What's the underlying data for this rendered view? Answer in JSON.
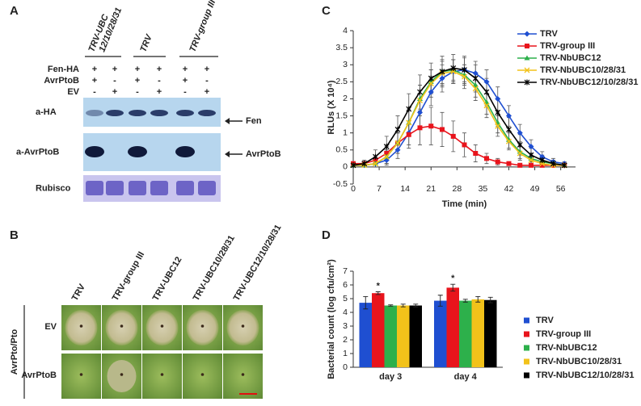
{
  "panel_labels": [
    "A",
    "B",
    "C",
    "D"
  ],
  "panel_a": {
    "groups": [
      {
        "lines": [
          "TRV-UBC",
          "12/10/28/31"
        ]
      },
      {
        "lines": [
          "TRV"
        ]
      },
      {
        "lines": [
          "TRV-group III"
        ]
      }
    ],
    "rows": [
      {
        "label": "Fen-HA",
        "signs": [
          "+",
          "+",
          "+",
          "+",
          "+",
          "+"
        ]
      },
      {
        "label": "AvrPtoB",
        "signs": [
          "+",
          "-",
          "+",
          "-",
          "+",
          "-"
        ]
      },
      {
        "label": "EV",
        "signs": [
          "-",
          "+",
          "-",
          "+",
          "-",
          "+"
        ]
      }
    ],
    "blots": [
      "a-HA",
      "a-AvrPtoB",
      "Rubisco"
    ],
    "arrows": [
      "Fen",
      "AvrPtoB"
    ]
  },
  "panel_b": {
    "columns": [
      "TRV",
      "TRV-group III",
      "TRV-UBC12",
      "TRV-UBC10/28/31",
      "TRV-UBC12/10/28/31"
    ],
    "rows": [
      "EV",
      "AvrPtoB"
    ],
    "side_label": "AvrPto/Pto"
  },
  "chart_data": [
    {
      "type": "line",
      "xlabel": "Time (min)",
      "ylabel": "RLUs (X 10⁴)",
      "x": [
        0,
        3,
        6,
        9,
        12,
        15,
        18,
        21,
        24,
        27,
        30,
        33,
        36,
        39,
        42,
        45,
        48,
        51,
        54,
        57
      ],
      "xlim": [
        0,
        60
      ],
      "xticks": [
        0,
        7,
        14,
        21,
        28,
        35,
        42,
        49,
        56
      ],
      "ylim": [
        -0.5,
        4
      ],
      "yticks": [
        -0.5,
        0,
        0.5,
        1,
        1.5,
        2,
        2.5,
        3,
        3.5,
        4
      ],
      "series": [
        {
          "name": "TRV",
          "color": "#1f4fd1",
          "marker": "diamond",
          "values": [
            0.05,
            0.05,
            0.1,
            0.2,
            0.5,
            1.0,
            1.6,
            2.2,
            2.6,
            2.8,
            2.85,
            2.75,
            2.5,
            2.0,
            1.5,
            1.0,
            0.6,
            0.3,
            0.15,
            0.1
          ],
          "errors": [
            0.05,
            0.05,
            0.1,
            0.15,
            0.25,
            0.35,
            0.4,
            0.4,
            0.4,
            0.35,
            0.35,
            0.35,
            0.35,
            0.35,
            0.3,
            0.25,
            0.2,
            0.15,
            0.1,
            0.05
          ]
        },
        {
          "name": "TRV-group III",
          "color": "#e8141c",
          "marker": "square",
          "values": [
            0.1,
            0.1,
            0.2,
            0.4,
            0.7,
            0.95,
            1.15,
            1.2,
            1.1,
            0.9,
            0.65,
            0.4,
            0.25,
            0.15,
            0.1,
            0.05,
            0.05,
            0.05,
            0.05,
            0.05
          ],
          "errors": [
            0.05,
            0.05,
            0.1,
            0.2,
            0.3,
            0.4,
            0.5,
            0.55,
            0.5,
            0.45,
            0.35,
            0.25,
            0.15,
            0.1,
            0.05,
            0.05,
            0.05,
            0.05,
            0.05,
            0.05
          ]
        },
        {
          "name": "TRV-NbUBC12",
          "color": "#2db04b",
          "marker": "triangle",
          "values": [
            0.05,
            0.05,
            0.1,
            0.3,
            0.7,
            1.3,
            2.0,
            2.5,
            2.8,
            2.85,
            2.7,
            2.4,
            1.9,
            1.3,
            0.8,
            0.45,
            0.25,
            0.15,
            0.1,
            0.05
          ],
          "errors": [
            0.05,
            0.05,
            0.1,
            0.2,
            0.3,
            0.4,
            0.4,
            0.35,
            0.35,
            0.3,
            0.3,
            0.35,
            0.35,
            0.3,
            0.25,
            0.2,
            0.15,
            0.1,
            0.05,
            0.05
          ]
        },
        {
          "name": "TRV-NbUBC10/28/31",
          "color": "#f2c21a",
          "marker": "x",
          "values": [
            0.05,
            0.05,
            0.1,
            0.3,
            0.7,
            1.3,
            1.95,
            2.45,
            2.75,
            2.8,
            2.65,
            2.3,
            1.8,
            1.2,
            0.75,
            0.4,
            0.2,
            0.1,
            0.05,
            0.05
          ],
          "errors": [
            0.05,
            0.05,
            0.1,
            0.2,
            0.3,
            0.4,
            0.45,
            0.4,
            0.35,
            0.35,
            0.35,
            0.35,
            0.35,
            0.3,
            0.25,
            0.2,
            0.15,
            0.1,
            0.05,
            0.05
          ]
        },
        {
          "name": "TRV-NbUBC12/10/28/31",
          "color": "#000000",
          "marker": "star",
          "values": [
            0.05,
            0.1,
            0.3,
            0.6,
            1.1,
            1.7,
            2.2,
            2.6,
            2.8,
            2.9,
            2.85,
            2.6,
            2.2,
            1.6,
            1.1,
            0.65,
            0.35,
            0.2,
            0.1,
            0.05
          ],
          "errors": [
            0.05,
            0.1,
            0.2,
            0.3,
            0.4,
            0.45,
            0.5,
            0.45,
            0.45,
            0.4,
            0.4,
            0.4,
            0.4,
            0.4,
            0.35,
            0.3,
            0.2,
            0.15,
            0.1,
            0.05
          ]
        }
      ]
    },
    {
      "type": "bar",
      "ylabel": "Bacterial count (log cfu/cm²)",
      "categories": [
        "day 3",
        "day 4"
      ],
      "ylim": [
        0,
        7
      ],
      "yticks": [
        0,
        1,
        2,
        3,
        4,
        5,
        6,
        7
      ],
      "series": [
        {
          "name": "TRV",
          "color": "#1f4fd1",
          "values": [
            4.7,
            4.85
          ],
          "errors": [
            0.45,
            0.4
          ]
        },
        {
          "name": "TRV-group III",
          "color": "#e8141c",
          "values": [
            5.4,
            5.8
          ],
          "errors": [
            0.1,
            0.25
          ]
        },
        {
          "name": "TRV-NbUBC12",
          "color": "#2db04b",
          "values": [
            4.5,
            4.85
          ],
          "errors": [
            0.05,
            0.1
          ]
        },
        {
          "name": "TRV-NbUBC10/28/31",
          "color": "#f2c21a",
          "values": [
            4.5,
            4.95
          ],
          "errors": [
            0.1,
            0.2
          ]
        },
        {
          "name": "TRV-NbUBC12/10/28/31",
          "color": "#000000",
          "values": [
            4.5,
            4.9
          ],
          "errors": [
            0.1,
            0.2
          ]
        }
      ],
      "annotations": [
        {
          "text": "*",
          "x": "day 3",
          "series": "TRV-group III"
        },
        {
          "text": "*",
          "x": "day 4",
          "series": "TRV-group III"
        }
      ]
    }
  ]
}
